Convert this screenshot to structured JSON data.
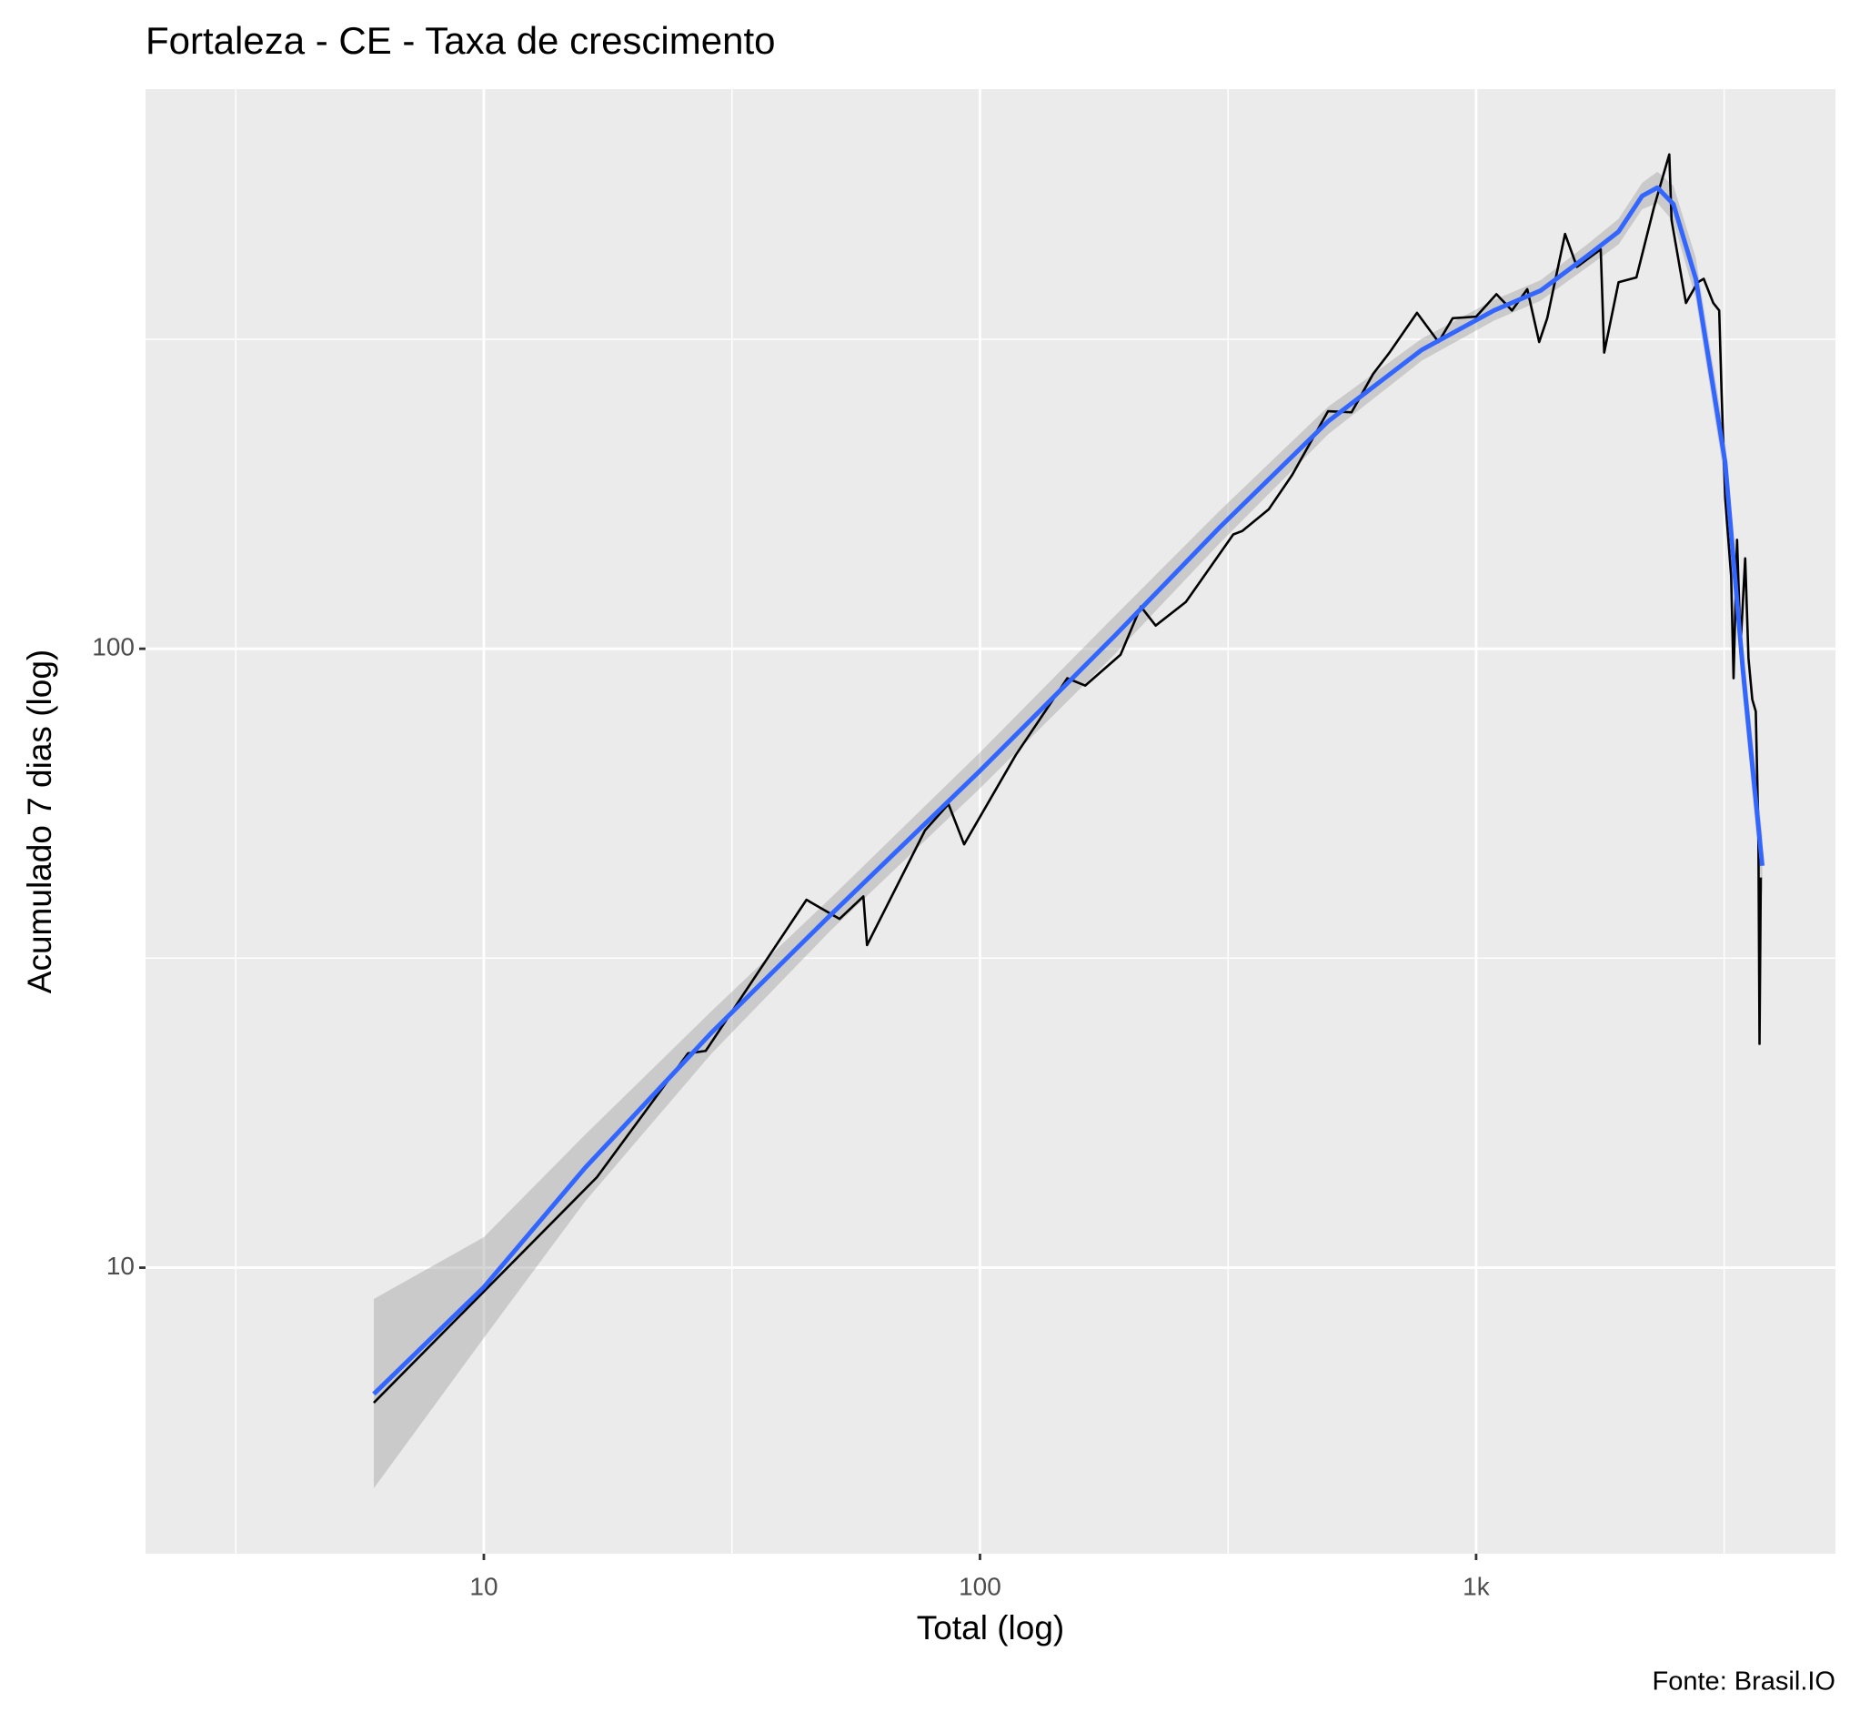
{
  "chart_data": {
    "type": "line",
    "title": "Fortaleza - CE - Taxa de crescimento",
    "x_label": "Total (log)",
    "y_label": "Acumulado 7 dias (log)",
    "caption": "Fonte: Brasil.IO",
    "x_log": true,
    "y_log": true,
    "grid": true,
    "xlim": [
      2.08,
      5300
    ],
    "ylim": [
      3.45,
      802
    ],
    "xticks": [
      {
        "value": 10,
        "label": "10"
      },
      {
        "value": 100,
        "label": "100"
      },
      {
        "value": 1000,
        "label": "1k"
      }
    ],
    "yticks": [
      10,
      100
    ],
    "series": [
      {
        "color": "#000000",
        "x": [
          6.0,
          16.9,
          25.8,
          28,
          44.7,
          52.1,
          58.2,
          59.2,
          77.5,
          86.4,
          92.9,
          118,
          150,
          163,
          192,
          211,
          226,
          260,
          324,
          338,
          382,
          426,
          503,
          561,
          620,
          669,
          760,
          840,
          897,
          1000,
          1099,
          1181,
          1268,
          1340,
          1391,
          1511,
          1597,
          1783,
          1812,
          1937,
          2104,
          2282,
          2451,
          2477,
          2648,
          2798,
          2876,
          3006,
          3090,
          3124,
          3177,
          3266,
          3303,
          3357,
          3412,
          3486,
          3540,
          3603,
          3662,
          3706,
          3726,
          3748
        ],
        "values": [
          6.05,
          14.0,
          22.2,
          22.4,
          39.3,
          36.6,
          39.8,
          33.2,
          50.9,
          56.1,
          48.3,
          67.3,
          89.6,
          87.2,
          97.8,
          117,
          109,
          119,
          153,
          155,
          168,
          191,
          242,
          241,
          278,
          301,
          349,
          313,
          342,
          344,
          374,
          352,
          381,
          313,
          342,
          468,
          414,
          442,
          301,
          391,
          398,
          516,
          629,
          493,
          362,
          391,
          396,
          362,
          352,
          260,
          175,
          131,
          89.6,
          150,
          101,
          140,
          96.5,
          82.8,
          79.2,
          50.9,
          23.0,
          42.7
        ]
      },
      {
        "color": "#3366ff",
        "x": [
          6.0,
          10,
          16.0,
          28.8,
          49.9,
          100,
          187,
          304,
          503,
          777,
          1086,
          1349,
          1686,
          1937,
          2161,
          2320,
          2498,
          2772,
          3177,
          3449,
          3774
        ],
        "values": [
          6.25,
          9.3,
          14.5,
          24.0,
          37.1,
          63.5,
          105,
          157,
          233,
          304,
          352,
          379,
          433,
          472,
          539,
          556,
          523,
          396,
          200,
          92.5,
          44.6
        ]
      }
    ],
    "band": {
      "color": "#999999",
      "x": [
        6.0,
        10,
        16.0,
        28.8,
        49.9,
        100,
        187,
        304,
        503,
        777,
        1086,
        1349,
        1686,
        1937,
        2161,
        2320,
        2498,
        2772,
        3177,
        3449,
        3774
      ],
      "lower": [
        4.4,
        7.7,
        12.8,
        22.2,
        35.0,
        59.5,
        98,
        148,
        222,
        292,
        339,
        365,
        415,
        450,
        513,
        525,
        490,
        368,
        185,
        84,
        40
      ],
      "upper": [
        8.9,
        11.2,
        16.4,
        26.0,
        39.5,
        68.0,
        113,
        167,
        246,
        317,
        366,
        394,
        452,
        495,
        566,
        590,
        560,
        428,
        217,
        102,
        50
      ]
    }
  }
}
